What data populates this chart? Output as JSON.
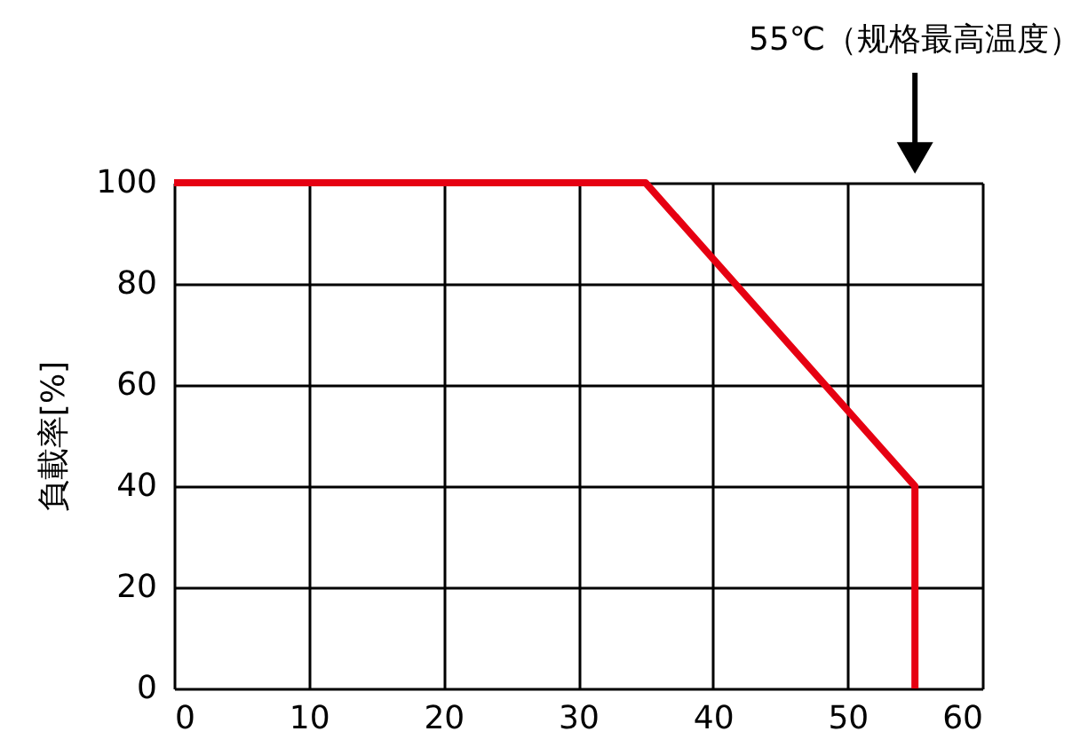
{
  "chart_data": {
    "type": "line",
    "ylabel": "負載率[%]",
    "x": [
      0,
      35,
      55,
      55
    ],
    "series": [
      {
        "color": "#e60012",
        "values": [
          100,
          100,
          40,
          0
        ]
      }
    ],
    "xlim": [
      0,
      60
    ],
    "xticks": [
      0,
      10,
      20,
      30,
      40,
      50,
      60
    ],
    "ylim": [
      0,
      100
    ],
    "yticks": [
      0,
      20,
      40,
      60,
      80,
      100
    ],
    "grid": true,
    "marker": "none",
    "line_style": "solid",
    "annotations": [
      "55℃（规格最高温度）"
    ]
  }
}
